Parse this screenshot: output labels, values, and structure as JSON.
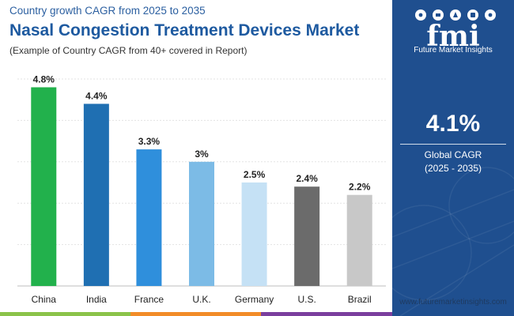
{
  "header": {
    "subtitle": "Country growth CAGR from 2025 to 2035",
    "title": "Nasal Congestion Treatment Devices Market",
    "note": "(Example of Country CAGR from 40+ covered in Report)"
  },
  "brand": {
    "logo_text": "Future Market Insights",
    "logo_letters": "fmi",
    "website": "www.futuremarketinsights.com"
  },
  "global": {
    "value": "4.1%",
    "label": "Global CAGR",
    "period": "(2025 - 2035)"
  },
  "colors": {
    "panel": "#1f4f8f",
    "title": "#1e5aa0",
    "strip": [
      "#8bc34a",
      "#f28c28",
      "#7b3f9e"
    ]
  },
  "chart_data": {
    "type": "bar",
    "title": "Nasal Congestion Treatment Devices Market",
    "xlabel": "",
    "ylabel": "",
    "ylim": [
      0,
      5
    ],
    "grid": true,
    "categories": [
      "China",
      "India",
      "France",
      "U.K.",
      "Germany",
      "U.S.",
      "Brazil"
    ],
    "values": [
      4.8,
      4.4,
      3.3,
      3,
      2.5,
      2.4,
      2.2
    ],
    "labels": [
      "4.8%",
      "4.4%",
      "3.3%",
      "3%",
      "2.5%",
      "2.4%",
      "2.2%"
    ],
    "bar_colors": [
      "#22b14c",
      "#1f6fb2",
      "#2f8fdc",
      "#7cbbe6",
      "#c5e1f5",
      "#6b6b6b",
      "#c8c8c8"
    ]
  }
}
